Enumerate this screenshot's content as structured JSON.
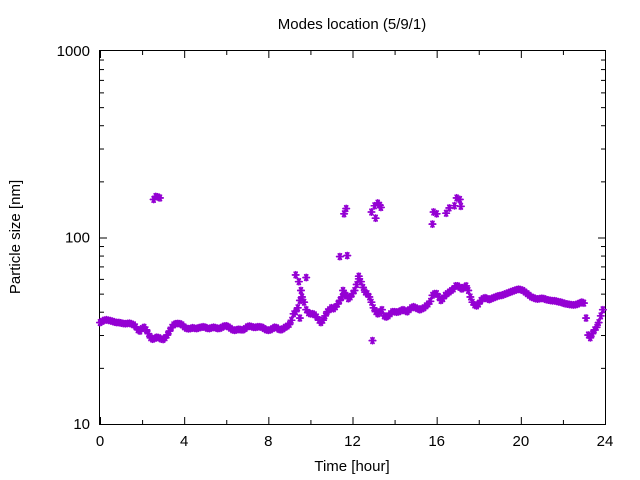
{
  "chart_data": {
    "type": "scatter",
    "title": "Modes location (5/9/1)",
    "xlabel": "Time [hour]",
    "ylabel": "Particle size [nm]",
    "xlim": [
      0,
      24
    ],
    "ylim": [
      10,
      1000
    ],
    "yscale": "log",
    "x_ticks": [
      0,
      4,
      8,
      12,
      16,
      20,
      24
    ],
    "x_tick_labels": [
      "0",
      "4",
      "8",
      "12",
      "16",
      "20",
      "24"
    ],
    "y_ticks": [
      10,
      100,
      1000
    ],
    "y_tick_labels": [
      "10",
      "100",
      "1000"
    ],
    "grid": false,
    "legend": "none",
    "marker_color": "#9400d3",
    "series": [
      {
        "marker": "asterisk",
        "points": [
          [
            0.0,
            35
          ],
          [
            0.1,
            35.5
          ],
          [
            0.2,
            36
          ],
          [
            0.3,
            36.2
          ],
          [
            0.4,
            36
          ],
          [
            0.5,
            35.8
          ],
          [
            0.6,
            35.5
          ],
          [
            0.7,
            35.2
          ],
          [
            0.8,
            35
          ],
          [
            0.9,
            35
          ],
          [
            1.0,
            34.8
          ],
          [
            1.1,
            34.6
          ],
          [
            1.2,
            34.5
          ],
          [
            1.3,
            34.6
          ],
          [
            1.4,
            34.7
          ],
          [
            1.5,
            34.4
          ],
          [
            1.6,
            34
          ],
          [
            1.7,
            33.2
          ],
          [
            1.8,
            32
          ],
          [
            1.9,
            31.5
          ],
          [
            2.0,
            32.5
          ],
          [
            2.1,
            33
          ],
          [
            2.2,
            32
          ],
          [
            2.3,
            30.5
          ],
          [
            2.4,
            29
          ],
          [
            2.5,
            28.5
          ],
          [
            2.6,
            28.8
          ],
          [
            2.7,
            29.2
          ],
          [
            2.8,
            29
          ],
          [
            2.9,
            28.6
          ],
          [
            3.0,
            28.4
          ],
          [
            3.1,
            29
          ],
          [
            3.2,
            30
          ],
          [
            3.3,
            31.5
          ],
          [
            3.4,
            33
          ],
          [
            3.5,
            34
          ],
          [
            3.6,
            34.5
          ],
          [
            3.7,
            34.6
          ],
          [
            3.8,
            34.5
          ],
          [
            3.9,
            34
          ],
          [
            4.0,
            33.2
          ],
          [
            4.1,
            32.6
          ],
          [
            4.2,
            32.4
          ],
          [
            4.3,
            32.5
          ],
          [
            4.4,
            32.8
          ],
          [
            4.5,
            32.6
          ],
          [
            4.6,
            32.5
          ],
          [
            4.7,
            32.8
          ],
          [
            4.8,
            33
          ],
          [
            4.9,
            33.2
          ],
          [
            5.0,
            33
          ],
          [
            5.1,
            32.6
          ],
          [
            5.2,
            32.5
          ],
          [
            5.3,
            32.8
          ],
          [
            5.4,
            33
          ],
          [
            5.5,
            32.8
          ],
          [
            5.6,
            32.5
          ],
          [
            5.7,
            32.6
          ],
          [
            5.8,
            33
          ],
          [
            5.9,
            33.5
          ],
          [
            6.0,
            33.6
          ],
          [
            6.1,
            33.2
          ],
          [
            6.2,
            32.6
          ],
          [
            6.3,
            32
          ],
          [
            6.4,
            31.8
          ],
          [
            6.5,
            32
          ],
          [
            6.6,
            32.2
          ],
          [
            6.7,
            32
          ],
          [
            6.8,
            32
          ],
          [
            6.9,
            32.5
          ],
          [
            7.0,
            33.2
          ],
          [
            7.1,
            33.5
          ],
          [
            7.2,
            33.3
          ],
          [
            7.3,
            33
          ],
          [
            7.4,
            33
          ],
          [
            7.5,
            33.2
          ],
          [
            7.6,
            33.2
          ],
          [
            7.7,
            33
          ],
          [
            7.8,
            32.5
          ],
          [
            7.9,
            32
          ],
          [
            8.0,
            31.8
          ],
          [
            8.1,
            32
          ],
          [
            8.2,
            32.5
          ],
          [
            8.3,
            33
          ],
          [
            8.4,
            32.8
          ],
          [
            8.5,
            32.2
          ],
          [
            8.6,
            32
          ],
          [
            8.7,
            32.4
          ],
          [
            8.8,
            33
          ],
          [
            8.9,
            33.5
          ],
          [
            9.0,
            34.2
          ],
          [
            9.1,
            36
          ],
          [
            9.2,
            39
          ],
          [
            9.3,
            40
          ],
          [
            9.4,
            42
          ],
          [
            9.5,
            46
          ],
          [
            9.6,
            48
          ],
          [
            9.7,
            45
          ],
          [
            9.8,
            41
          ],
          [
            9.9,
            39.5
          ],
          [
            10.0,
            39
          ],
          [
            10.1,
            39
          ],
          [
            10.2,
            38.5
          ],
          [
            10.3,
            37.5
          ],
          [
            10.4,
            36
          ],
          [
            10.5,
            35
          ],
          [
            10.6,
            36
          ],
          [
            10.7,
            38
          ],
          [
            10.8,
            40
          ],
          [
            10.9,
            41
          ],
          [
            11.0,
            42
          ],
          [
            11.1,
            41.5
          ],
          [
            11.2,
            42.5
          ],
          [
            11.3,
            44
          ],
          [
            11.4,
            46
          ],
          [
            11.5,
            48
          ],
          [
            11.6,
            50
          ],
          [
            11.7,
            49
          ],
          [
            11.8,
            47
          ],
          [
            11.9,
            48
          ],
          [
            12.0,
            50
          ],
          [
            12.1,
            52
          ],
          [
            12.2,
            56
          ],
          [
            12.3,
            60
          ],
          [
            12.4,
            58
          ],
          [
            12.5,
            54
          ],
          [
            12.6,
            51
          ],
          [
            12.7,
            50
          ],
          [
            12.8,
            48
          ],
          [
            12.9,
            45
          ],
          [
            13.0,
            42
          ],
          [
            13.1,
            40
          ],
          [
            13.2,
            39
          ],
          [
            13.3,
            40
          ],
          [
            13.4,
            41
          ],
          [
            13.5,
            38
          ],
          [
            13.6,
            37.5
          ],
          [
            13.7,
            38
          ],
          [
            13.8,
            39
          ],
          [
            13.9,
            40
          ],
          [
            14.0,
            40
          ],
          [
            14.1,
            39.8
          ],
          [
            14.2,
            40
          ],
          [
            14.3,
            40.5
          ],
          [
            14.4,
            41
          ],
          [
            14.5,
            40.5
          ],
          [
            14.6,
            40
          ],
          [
            14.7,
            41
          ],
          [
            14.8,
            42
          ],
          [
            14.9,
            42.5
          ],
          [
            15.0,
            42
          ],
          [
            15.1,
            41.5
          ],
          [
            15.2,
            41
          ],
          [
            15.3,
            41.5
          ],
          [
            15.4,
            42
          ],
          [
            15.5,
            43
          ],
          [
            15.6,
            44
          ],
          [
            15.7,
            45.5
          ],
          [
            15.8,
            49
          ],
          [
            15.9,
            50
          ],
          [
            16.0,
            50
          ],
          [
            16.1,
            48
          ],
          [
            16.2,
            46
          ],
          [
            16.3,
            47
          ],
          [
            16.4,
            49
          ],
          [
            16.5,
            50
          ],
          [
            16.6,
            51
          ],
          [
            16.7,
            52
          ],
          [
            16.8,
            53
          ],
          [
            16.9,
            55
          ],
          [
            17.0,
            55
          ],
          [
            17.1,
            54
          ],
          [
            17.2,
            53
          ],
          [
            17.3,
            54
          ],
          [
            17.4,
            55
          ],
          [
            17.5,
            52
          ],
          [
            17.6,
            48
          ],
          [
            17.7,
            45
          ],
          [
            17.8,
            43.5
          ],
          [
            17.9,
            43
          ],
          [
            18.0,
            44
          ],
          [
            18.1,
            46
          ],
          [
            18.2,
            47
          ],
          [
            18.3,
            47.5
          ],
          [
            18.4,
            47
          ],
          [
            18.5,
            46.5
          ],
          [
            18.6,
            47
          ],
          [
            18.7,
            47.5
          ],
          [
            18.8,
            48
          ],
          [
            18.9,
            48.5
          ],
          [
            19.0,
            48.8
          ],
          [
            19.1,
            49
          ],
          [
            19.2,
            49.5
          ],
          [
            19.3,
            50
          ],
          [
            19.4,
            50.5
          ],
          [
            19.5,
            51
          ],
          [
            19.6,
            51.5
          ],
          [
            19.7,
            52
          ],
          [
            19.8,
            52.5
          ],
          [
            19.9,
            52.8
          ],
          [
            20.0,
            52.5
          ],
          [
            20.1,
            52
          ],
          [
            20.2,
            51
          ],
          [
            20.3,
            50
          ],
          [
            20.4,
            49
          ],
          [
            20.5,
            48
          ],
          [
            20.6,
            47.5
          ],
          [
            20.7,
            47
          ],
          [
            20.8,
            46.8
          ],
          [
            20.9,
            47
          ],
          [
            21.0,
            47.2
          ],
          [
            21.1,
            47
          ],
          [
            21.2,
            46.5
          ],
          [
            21.3,
            46.2
          ],
          [
            21.4,
            46
          ],
          [
            21.5,
            45.8
          ],
          [
            21.6,
            45.8
          ],
          [
            21.7,
            45.5
          ],
          [
            21.8,
            45.2
          ],
          [
            21.9,
            45
          ],
          [
            22.0,
            44.6
          ],
          [
            22.1,
            44.2
          ],
          [
            22.2,
            44
          ],
          [
            22.3,
            43.8
          ],
          [
            22.4,
            43.6
          ],
          [
            22.5,
            43.5
          ],
          [
            22.6,
            43.6
          ],
          [
            22.7,
            44
          ],
          [
            22.8,
            44.5
          ],
          [
            22.9,
            45
          ],
          [
            23.0,
            44.5
          ],
          [
            23.1,
            37
          ],
          [
            23.2,
            30
          ],
          [
            23.3,
            29
          ],
          [
            23.4,
            30.5
          ],
          [
            23.5,
            32
          ],
          [
            23.6,
            33
          ],
          [
            23.7,
            35
          ],
          [
            23.8,
            38
          ],
          [
            23.9,
            41
          ],
          [
            2.55,
            160
          ],
          [
            2.65,
            166
          ],
          [
            2.75,
            165
          ],
          [
            2.85,
            163
          ],
          [
            9.3,
            63
          ],
          [
            9.45,
            58
          ],
          [
            9.8,
            61
          ],
          [
            9.5,
            37
          ],
          [
            9.55,
            52
          ],
          [
            11.4,
            79
          ],
          [
            11.75,
            80
          ],
          [
            11.6,
            134
          ],
          [
            11.7,
            143
          ],
          [
            11.55,
            52
          ],
          [
            12.3,
            62
          ],
          [
            12.95,
            28
          ],
          [
            12.9,
            137
          ],
          [
            13.05,
            148
          ],
          [
            13.1,
            127
          ],
          [
            13.2,
            153
          ],
          [
            13.3,
            149
          ],
          [
            13.35,
            145
          ],
          [
            15.8,
            118
          ],
          [
            15.85,
            137
          ],
          [
            16.0,
            134
          ],
          [
            16.45,
            135
          ],
          [
            16.6,
            144
          ],
          [
            16.85,
            148
          ],
          [
            16.95,
            163
          ],
          [
            17.1,
            160
          ],
          [
            17.15,
            147
          ]
        ]
      }
    ]
  }
}
